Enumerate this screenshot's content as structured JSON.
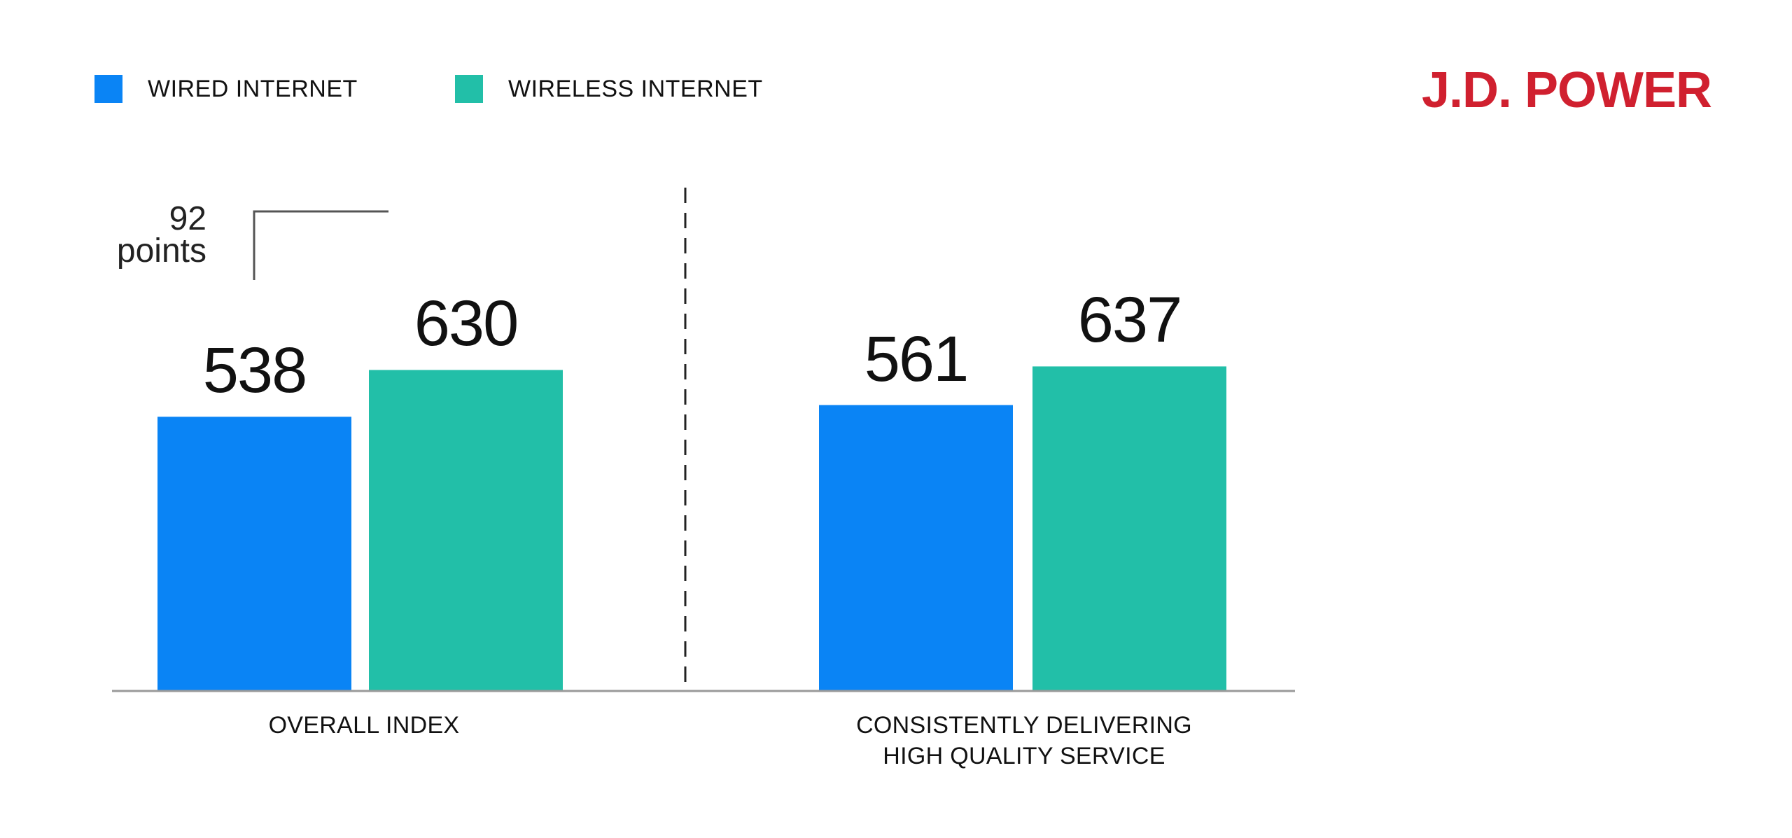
{
  "legend": [
    {
      "label": "WIRED INTERNET",
      "color": "#0a84f5"
    },
    {
      "label": "WIRELESS INTERNET",
      "color": "#22bfa8"
    }
  ],
  "brand": {
    "logo_text": "J.D. POWER",
    "color": "#d0202f"
  },
  "chart_data": {
    "type": "bar",
    "categories": [
      "OVERALL INDEX",
      "CONSISTENTLY DELIVERING HIGH QUALITY SERVICE"
    ],
    "category_lines": [
      [
        "OVERALL INDEX"
      ],
      [
        "CONSISTENTLY DELIVERING",
        "HIGH QUALITY SERVICE"
      ]
    ],
    "series": [
      {
        "name": "WIRED INTERNET",
        "values": [
          538,
          561
        ],
        "color": "#0a84f5"
      },
      {
        "name": "WIRELESS INTERNET",
        "values": [
          630,
          637
        ],
        "color": "#22bfa8"
      }
    ],
    "annotation": {
      "value": "92",
      "unit": "points",
      "category": "OVERALL INDEX"
    },
    "ylim": [
      0,
      700
    ],
    "grid": false,
    "legend_position": "top-left"
  }
}
